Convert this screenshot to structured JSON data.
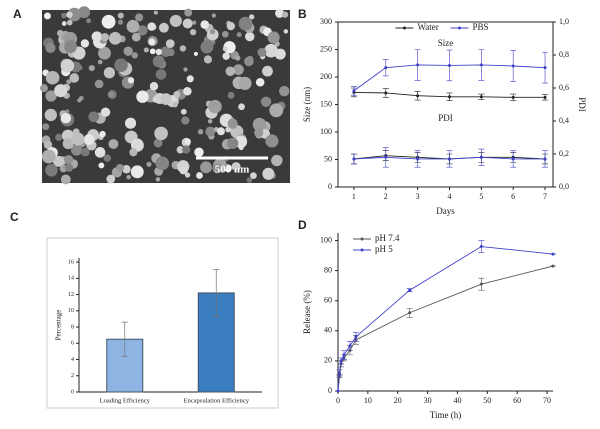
{
  "image": {
    "panel": "A",
    "scale_bar": "500 nm"
  },
  "chart_data": [
    {
      "type": "line",
      "panel": "B",
      "x": [
        1,
        2,
        3,
        4,
        5,
        6,
        7
      ],
      "xlim": [
        0.5,
        7.25
      ],
      "xticks": [
        1,
        2,
        3,
        4,
        5,
        6,
        7
      ],
      "ylim": [
        0,
        300
      ],
      "yticks": [
        0,
        50,
        100,
        150,
        200,
        250,
        300
      ],
      "y2lim": [
        0,
        1.0
      ],
      "y2ticks": [
        {
          "value": 0,
          "label": "0,0"
        },
        {
          "value": 0.2,
          "label": "0,2"
        },
        {
          "value": 0.4,
          "label": "0,4"
        },
        {
          "value": 0.6,
          "label": "0,6"
        },
        {
          "value": 0.8,
          "label": "0,8"
        },
        {
          "value": 1.0,
          "label": "1,0"
        }
      ],
      "xlabel": "Days",
      "ylabel": "Size (nm)",
      "y2label": "PDI",
      "annotations": [
        "Size",
        "PDI"
      ],
      "legend": "upper center",
      "series": [
        {
          "name": "Water",
          "color": "#222222",
          "values": [
            172,
            171,
            166,
            164,
            164,
            163,
            163
          ],
          "errors": [
            8,
            8,
            8,
            7,
            5,
            6,
            5
          ]
        },
        {
          "name": "PBS",
          "color": "#4040c8",
          "values": [
            175,
            217,
            222,
            221,
            222,
            220,
            217
          ],
          "errors": [
            8,
            15,
            28,
            28,
            28,
            28,
            28
          ]
        },
        {
          "color": "#222222",
          "axis": "y2",
          "values": [
            0.17,
            0.19,
            0.18,
            0.17,
            0.18,
            0.18,
            0.17
          ],
          "errors": [
            0.03,
            0.03,
            0.03,
            0.03,
            0.03,
            0.03,
            0.03
          ]
        },
        {
          "color": "#4040c8",
          "axis": "y2",
          "values": [
            0.17,
            0.18,
            0.17,
            0.17,
            0.18,
            0.17,
            0.17
          ],
          "errors": [
            0.03,
            0.06,
            0.05,
            0.05,
            0.05,
            0.05,
            0.05
          ]
        }
      ]
    },
    {
      "type": "bar",
      "panel": "C",
      "categories": [
        "Loading Efficiency",
        "Encapsulation Efficiency"
      ],
      "values": [
        6.5,
        12.2
      ],
      "errors": [
        2.1,
        2.9
      ],
      "colors": [
        "#8db4e2",
        "#3a7ebf"
      ],
      "ylim": [
        0,
        16.5
      ],
      "yticks": [
        0,
        2,
        4,
        6,
        8,
        10,
        12,
        14,
        16
      ],
      "ylabel": "Percentage"
    },
    {
      "type": "line",
      "panel": "D",
      "x": [
        0,
        0.5,
        1,
        2,
        4,
        6,
        24,
        48,
        72
      ],
      "xlim": [
        0,
        72
      ],
      "xticks": [
        0,
        10,
        20,
        30,
        40,
        50,
        60,
        70
      ],
      "ylim": [
        0,
        105
      ],
      "yticks": [
        0,
        20,
        40,
        60,
        80,
        100
      ],
      "xlabel": "Time (h)",
      "ylabel": "Release (%)",
      "legend": "upper left",
      "series": [
        {
          "name": "pH 7.4",
          "color": "#555555",
          "values": [
            0,
            10,
            18,
            22,
            27,
            34,
            52,
            71,
            83
          ],
          "errors": [
            0,
            1,
            2,
            2,
            3,
            3,
            3,
            4,
            0
          ]
        },
        {
          "name": "pH 5",
          "color": "#4040c8",
          "values": [
            0,
            12,
            20,
            24,
            30,
            36,
            67,
            96,
            91
          ],
          "errors": [
            0,
            2,
            2,
            3,
            3,
            3,
            1,
            4,
            0
          ]
        }
      ]
    }
  ]
}
